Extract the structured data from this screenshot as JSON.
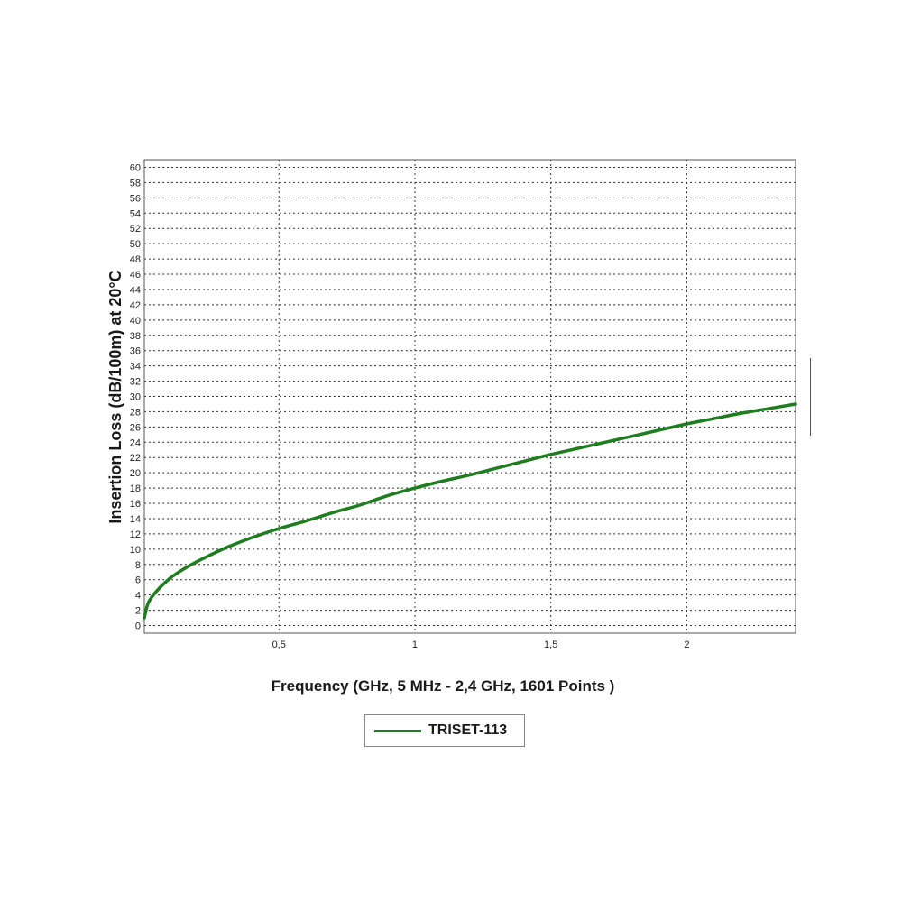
{
  "chart_data": {
    "type": "line",
    "ylabel": "Insertion Loss (dB/100m) at 20°C",
    "xlabel": "Frequency (GHz, 5 MHz - 2,4 GHz, 1601 Points )",
    "xlim": [
      0.005,
      2.4
    ],
    "ylim": [
      -1,
      61
    ],
    "x_ticks": [
      0.5,
      1,
      1.5,
      2
    ],
    "x_tick_labels": [
      "0,5",
      "1",
      "1,5",
      "2"
    ],
    "y_ticks": [
      0,
      2,
      4,
      6,
      8,
      10,
      12,
      14,
      16,
      18,
      20,
      22,
      24,
      26,
      28,
      30,
      32,
      34,
      36,
      38,
      40,
      42,
      44,
      46,
      48,
      50,
      52,
      54,
      56,
      58,
      60
    ],
    "grid": true,
    "legend_placement": "bottom-center",
    "colors": {
      "series": "#1e7d1e",
      "grid": "#333333",
      "frame": "#555555"
    },
    "series": [
      {
        "name": "TRISET-113",
        "x": [
          0.005,
          0.02,
          0.05,
          0.1,
          0.15,
          0.2,
          0.3,
          0.4,
          0.5,
          0.6,
          0.7,
          0.8,
          0.9,
          1.0,
          1.1,
          1.2,
          1.3,
          1.4,
          1.5,
          1.6,
          1.7,
          1.8,
          1.9,
          2.0,
          2.1,
          2.2,
          2.3,
          2.4
        ],
        "values": [
          1.0,
          3.0,
          4.5,
          6.2,
          7.4,
          8.4,
          10.1,
          11.5,
          12.7,
          13.7,
          14.8,
          15.8,
          17.0,
          18.0,
          18.9,
          19.7,
          20.6,
          21.5,
          22.4,
          23.2,
          24.0,
          24.8,
          25.6,
          26.4,
          27.1,
          27.8,
          28.4,
          29.0
        ]
      }
    ]
  }
}
